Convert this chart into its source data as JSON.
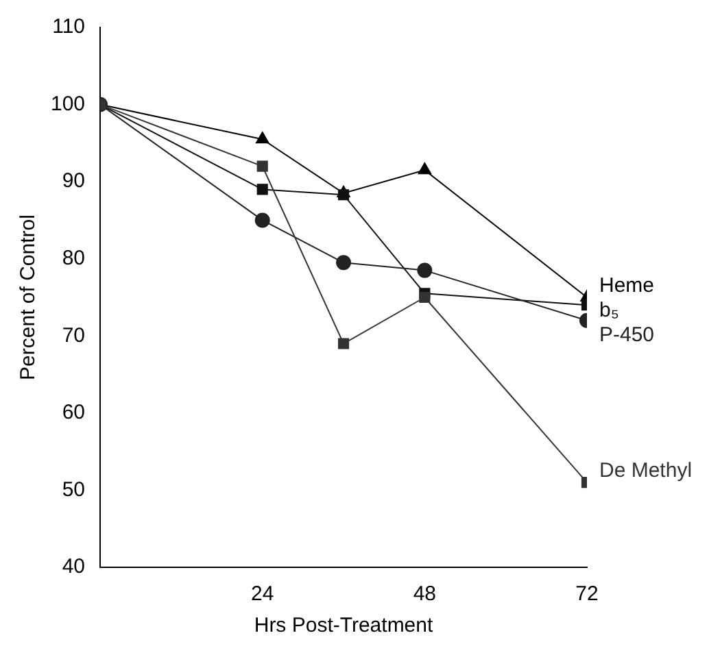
{
  "chart_data": {
    "type": "line",
    "xlabel": "Hrs Post-Treatment",
    "ylabel": "Percent of Control",
    "x": [
      0,
      24,
      36,
      48,
      72
    ],
    "xlim": [
      0,
      72
    ],
    "xticks": [
      24,
      48,
      72
    ],
    "ylim": [
      40,
      110
    ],
    "yticks": [
      40,
      50,
      60,
      70,
      80,
      90,
      100,
      110
    ],
    "grid": false,
    "legend": false,
    "line_style": "solid",
    "series": [
      {
        "name": "Heme",
        "color": "#000000",
        "marker": "triangle",
        "values": [
          100,
          95.5,
          88.5,
          91.5,
          75
        ]
      },
      {
        "name": "b₅",
        "color": "#111111",
        "marker": "square",
        "values": [
          100,
          89,
          88.3,
          75.5,
          74
        ]
      },
      {
        "name": "P-450",
        "color": "#222222",
        "marker": "circle",
        "values": [
          100,
          85,
          79.5,
          78.5,
          72
        ]
      },
      {
        "name": "De Methyl",
        "color": "#333333",
        "marker": "square",
        "values": [
          100,
          92,
          69,
          75,
          51
        ]
      }
    ]
  }
}
